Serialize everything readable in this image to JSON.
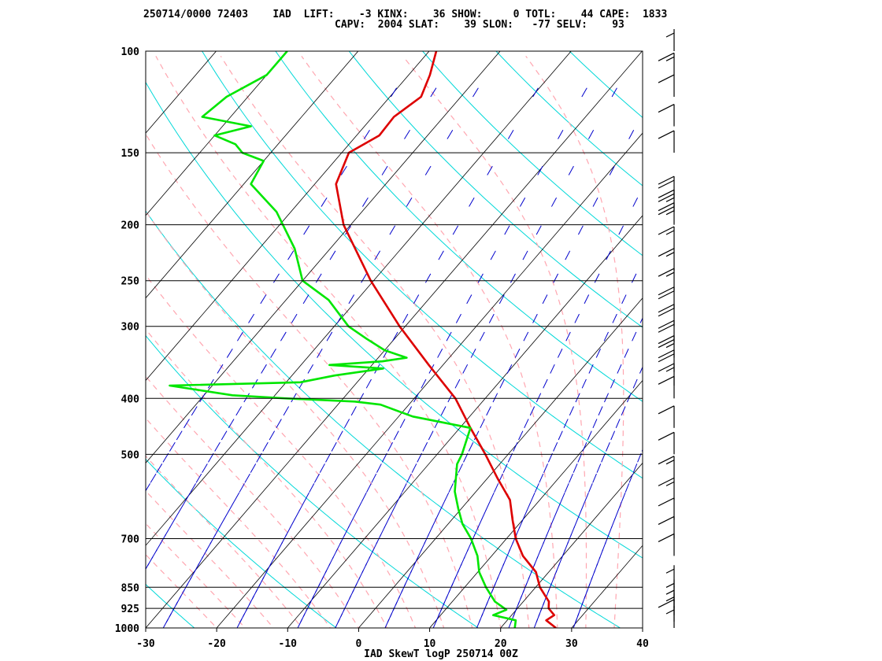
{
  "header": {
    "line1": "250714/0000 72403    IAD  LIFT:    -3 KINX:    36 SHOW:     0 TOTL:    44 CAPE:  1833",
    "line2": "CAPV:  2004 SLAT:    39 SLON:   -77 SELV:    93"
  },
  "chart_data": {
    "type": "line",
    "subtype": "skew-t log-p",
    "title": "IAD SkewT logP 250714 00Z",
    "xlim": [
      -30,
      40
    ],
    "ylim": [
      1000,
      100
    ],
    "x_ticks": [
      "-30",
      "-20",
      "-10",
      "0",
      "10",
      "20",
      "30",
      "40"
    ],
    "x_tick_values": [
      -30,
      -20,
      -10,
      0,
      10,
      20,
      30,
      40
    ],
    "pressure_levels": [
      100,
      150,
      200,
      250,
      300,
      400,
      500,
      700,
      850,
      925,
      1000
    ],
    "pressure_labels": [
      "100",
      "150",
      "200",
      "250",
      "300",
      "400",
      "500",
      "700",
      "850",
      "925",
      "1000"
    ],
    "colors": {
      "temperature": "#dd0000",
      "dewpoint": "#00e600",
      "isotherm": "#000000",
      "dry_adiabat": "#00d8d8",
      "moist_adiabat": "#ffa6b0",
      "mixing_ratio": "#0000cc"
    },
    "series": [
      {
        "role": "temperature",
        "points": [
          [
            1000,
            27.8
          ],
          [
            970,
            25.5
          ],
          [
            950,
            26.0
          ],
          [
            925,
            24.4
          ],
          [
            900,
            23.6
          ],
          [
            850,
            20.6
          ],
          [
            800,
            18.2
          ],
          [
            750,
            14.4
          ],
          [
            700,
            11.3
          ],
          [
            650,
            8.6
          ],
          [
            600,
            5.8
          ],
          [
            550,
            1.4
          ],
          [
            500,
            -3.2
          ],
          [
            450,
            -8.5
          ],
          [
            400,
            -14.2
          ],
          [
            350,
            -22.0
          ],
          [
            300,
            -30.8
          ],
          [
            250,
            -40.4
          ],
          [
            200,
            -51.0
          ],
          [
            170,
            -57.0
          ],
          [
            150,
            -59.0
          ],
          [
            140,
            -56.8
          ],
          [
            130,
            -57.0
          ],
          [
            120,
            -55.6
          ],
          [
            110,
            -57.0
          ],
          [
            100,
            -59.0
          ]
        ]
      },
      {
        "role": "dewpoint",
        "points": [
          [
            1000,
            22.0
          ],
          [
            970,
            21.2
          ],
          [
            950,
            17.4
          ],
          [
            930,
            18.6
          ],
          [
            900,
            16.0
          ],
          [
            850,
            13.0
          ],
          [
            800,
            10.2
          ],
          [
            750,
            8.0
          ],
          [
            700,
            5.0
          ],
          [
            660,
            2.0
          ],
          [
            620,
            -0.5
          ],
          [
            580,
            -3.0
          ],
          [
            520,
            -6.0
          ],
          [
            500,
            -6.5
          ],
          [
            450,
            -8.5
          ],
          [
            430,
            -18.0
          ],
          [
            410,
            -24.0
          ],
          [
            405,
            -28.0
          ],
          [
            400,
            -38.0
          ],
          [
            395,
            -46.0
          ],
          [
            380,
            -56.0
          ],
          [
            375,
            -38.0
          ],
          [
            365,
            -34.0
          ],
          [
            355,
            -28.0
          ],
          [
            350,
            -36.0
          ],
          [
            345,
            -29.0
          ],
          [
            340,
            -26.0
          ],
          [
            330,
            -30.0
          ],
          [
            315,
            -34.0
          ],
          [
            300,
            -38.0
          ],
          [
            270,
            -44.0
          ],
          [
            250,
            -50.0
          ],
          [
            220,
            -55.0
          ],
          [
            190,
            -62.0
          ],
          [
            170,
            -69.0
          ],
          [
            155,
            -70.0
          ],
          [
            150,
            -74.0
          ],
          [
            145,
            -76.0
          ],
          [
            140,
            -80.0
          ],
          [
            135,
            -76.0
          ],
          [
            130,
            -84.0
          ],
          [
            120,
            -83.0
          ],
          [
            110,
            -80.0
          ],
          [
            100,
            -80.0
          ]
        ]
      }
    ],
    "wind_barbs_kt": [
      [
        1000,
        5
      ],
      [
        975,
        10
      ],
      [
        950,
        5
      ],
      [
        925,
        5
      ],
      [
        900,
        5
      ],
      [
        850,
        5
      ],
      [
        750,
        10
      ],
      [
        700,
        10
      ],
      [
        650,
        10
      ],
      [
        600,
        15
      ],
      [
        550,
        15
      ],
      [
        500,
        10
      ],
      [
        450,
        10
      ],
      [
        400,
        10
      ],
      [
        380,
        15
      ],
      [
        360,
        20
      ],
      [
        340,
        25
      ],
      [
        320,
        20
      ],
      [
        300,
        20
      ],
      [
        280,
        20
      ],
      [
        260,
        15
      ],
      [
        240,
        15
      ],
      [
        220,
        15
      ],
      [
        200,
        25
      ],
      [
        190,
        25
      ],
      [
        180,
        20
      ],
      [
        150,
        10
      ],
      [
        135,
        10
      ],
      [
        120,
        10
      ],
      [
        110,
        15
      ],
      [
        100,
        5
      ]
    ]
  }
}
